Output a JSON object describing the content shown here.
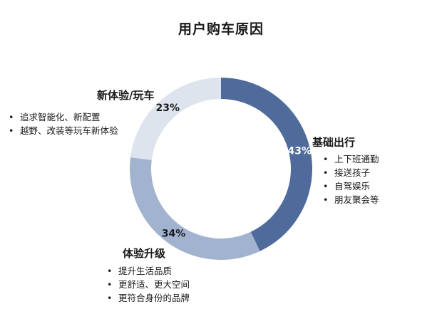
{
  "chart_data": {
    "type": "pie",
    "title": "用户购车原因",
    "slices": [
      {
        "label": "基础出行",
        "value": 43,
        "value_label": "43%",
        "color": "#4f6b9c",
        "text_color": "#ffffff",
        "bullets": [
          "上下班通勤",
          "接送孩子",
          "自驾娱乐",
          "朋友聚会等"
        ]
      },
      {
        "label": "体验升级",
        "value": 34,
        "value_label": "34%",
        "color": "#a2b3d0",
        "text_color": "#1a1a1a",
        "bullets": [
          "提升生活品质",
          "更舒适、更大空间",
          "更符合身份的品牌"
        ]
      },
      {
        "label": "新体验/玩车",
        "value": 23,
        "value_label": "23%",
        "color": "#dde4ee",
        "text_color": "#1a1a1a",
        "bullets": [
          "追求智能化、新配置",
          "越野、改装等玩车新体验"
        ]
      }
    ]
  }
}
